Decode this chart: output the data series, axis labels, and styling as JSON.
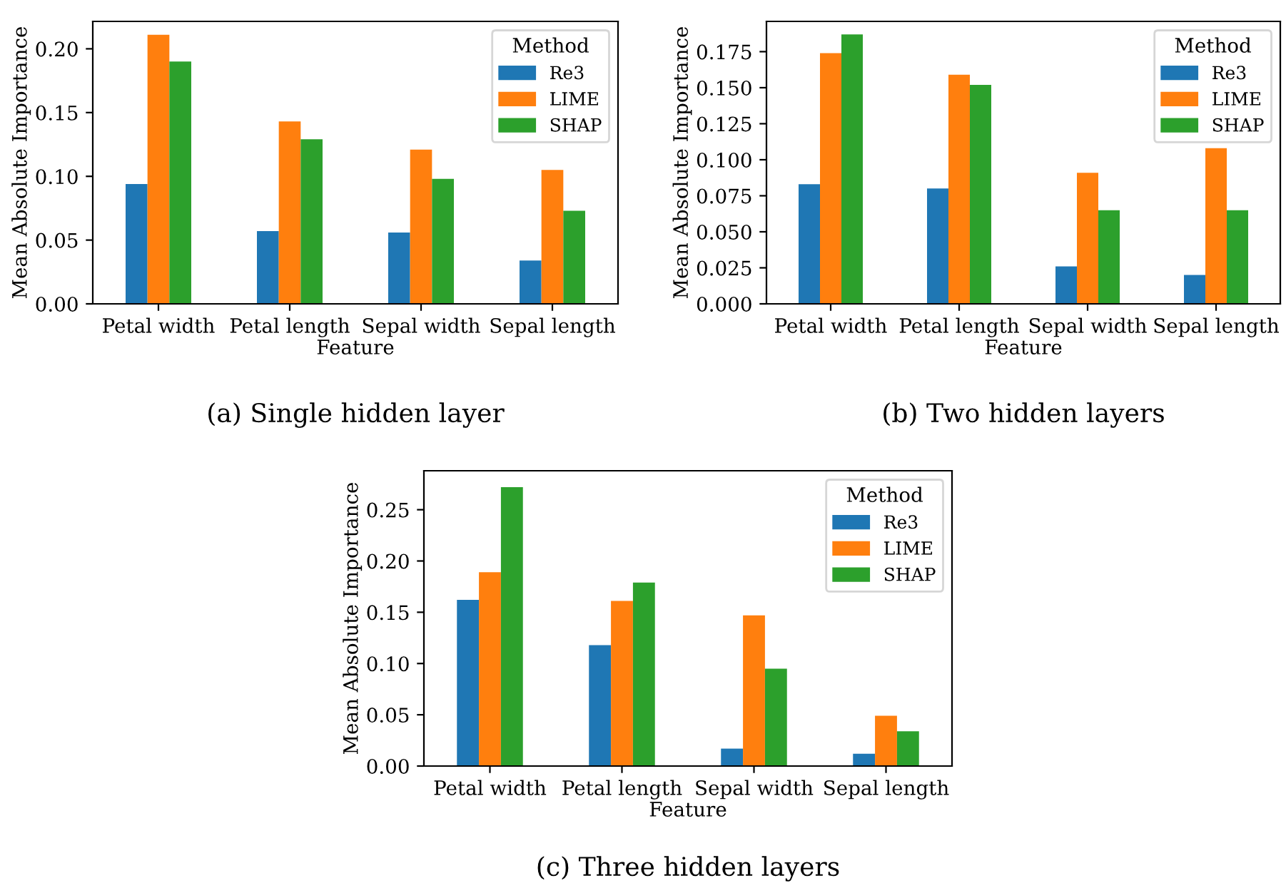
{
  "chart_data": [
    {
      "type": "bar",
      "xlabel": "Feature",
      "ylabel": "Mean Absolute Importance",
      "legend_title": "Method",
      "legend": "top right",
      "grid": false,
      "categories": [
        "Petal width",
        "Petal length",
        "Sepal width",
        "Sepal length"
      ],
      "series": [
        {
          "name": "Re3",
          "color": "#1f77b4",
          "values": [
            0.094,
            0.057,
            0.056,
            0.034
          ]
        },
        {
          "name": "LIME",
          "color": "#ff7f0e",
          "values": [
            0.211,
            0.143,
            0.121,
            0.105
          ]
        },
        {
          "name": "SHAP",
          "color": "#2ca02c",
          "values": [
            0.19,
            0.129,
            0.098,
            0.073
          ]
        }
      ],
      "ylim": [
        0,
        0.2215
      ],
      "yticks": [
        {
          "value": 0,
          "label": "0.00"
        },
        {
          "value": 0.05,
          "label": "0.05"
        },
        {
          "value": 0.1,
          "label": "0.10"
        },
        {
          "value": 0.15,
          "label": "0.15"
        },
        {
          "value": 0.2,
          "label": "0.20"
        }
      ],
      "annotations": [
        "(a) Single hidden layer"
      ]
    },
    {
      "type": "bar",
      "xlabel": "Feature",
      "ylabel": "Mean Absolute Importance",
      "legend_title": "Method",
      "legend": "top right",
      "grid": false,
      "categories": [
        "Petal width",
        "Petal length",
        "Sepal width",
        "Sepal length"
      ],
      "series": [
        {
          "name": "Re3",
          "color": "#1f77b4",
          "values": [
            0.083,
            0.08,
            0.026,
            0.02
          ]
        },
        {
          "name": "LIME",
          "color": "#ff7f0e",
          "values": [
            0.174,
            0.159,
            0.091,
            0.108
          ]
        },
        {
          "name": "SHAP",
          "color": "#2ca02c",
          "values": [
            0.187,
            0.152,
            0.065,
            0.065
          ]
        }
      ],
      "ylim": [
        0,
        0.196
      ],
      "yticks": [
        {
          "value": 0,
          "label": "0.000"
        },
        {
          "value": 0.025,
          "label": "0.025"
        },
        {
          "value": 0.05,
          "label": "0.050"
        },
        {
          "value": 0.075,
          "label": "0.075"
        },
        {
          "value": 0.1,
          "label": "0.100"
        },
        {
          "value": 0.125,
          "label": "0.125"
        },
        {
          "value": 0.15,
          "label": "0.150"
        },
        {
          "value": 0.175,
          "label": "0.175"
        }
      ],
      "annotations": [
        "(b) Two hidden layers"
      ]
    },
    {
      "type": "bar",
      "xlabel": "Feature",
      "ylabel": "Mean Absolute Importance",
      "legend_title": "Method",
      "legend": "top right",
      "grid": false,
      "categories": [
        "Petal width",
        "Petal length",
        "Sepal width",
        "Sepal length"
      ],
      "series": [
        {
          "name": "Re3",
          "color": "#1f77b4",
          "values": [
            0.162,
            0.118,
            0.017,
            0.012
          ]
        },
        {
          "name": "LIME",
          "color": "#ff7f0e",
          "values": [
            0.189,
            0.161,
            0.147,
            0.049
          ]
        },
        {
          "name": "SHAP",
          "color": "#2ca02c",
          "values": [
            0.272,
            0.179,
            0.095,
            0.034
          ]
        }
      ],
      "ylim": [
        0,
        0.288
      ],
      "yticks": [
        {
          "value": 0,
          "label": "0.00"
        },
        {
          "value": 0.05,
          "label": "0.05"
        },
        {
          "value": 0.1,
          "label": "0.10"
        },
        {
          "value": 0.15,
          "label": "0.15"
        },
        {
          "value": 0.2,
          "label": "0.20"
        },
        {
          "value": 0.25,
          "label": "0.25"
        }
      ],
      "annotations": [
        "(c) Three hidden layers"
      ]
    }
  ]
}
